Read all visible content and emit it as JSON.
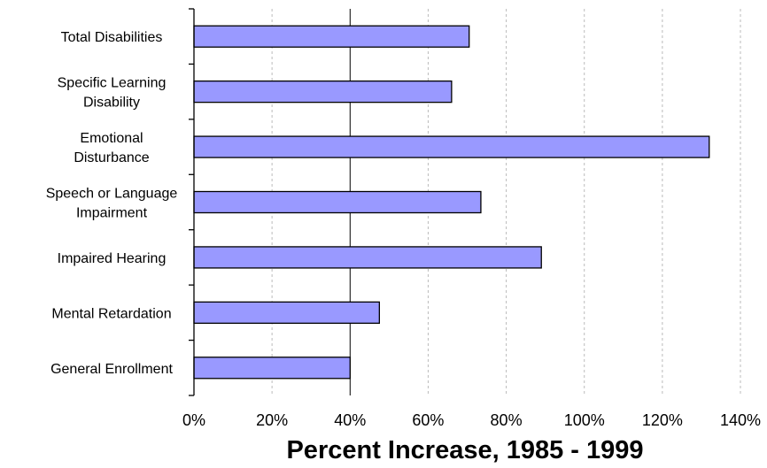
{
  "chart_data": {
    "type": "bar",
    "orientation": "horizontal",
    "categories": [
      [
        "Total Disabilities"
      ],
      [
        "Specific Learning",
        "Disability"
      ],
      [
        "Emotional",
        "Disturbance"
      ],
      [
        "Speech or Language",
        "Impairment"
      ],
      [
        "Impaired Hearing"
      ],
      [
        "Mental Retardation"
      ],
      [
        "General Enrollment"
      ]
    ],
    "values": [
      70.5,
      66,
      132,
      73.5,
      89,
      47.5,
      40
    ],
    "title": "",
    "xlabel": "Percent Increase, 1985 - 1999",
    "ylabel": "",
    "xlim": [
      0,
      140
    ],
    "x_ticks": [
      0,
      20,
      40,
      60,
      80,
      100,
      120,
      140
    ],
    "x_tick_labels": [
      "0%",
      "20%",
      "40%",
      "60%",
      "80%",
      "100%",
      "120%",
      "140%"
    ],
    "reference_line_at": 40,
    "grid": "vertical dashed",
    "legend": "none",
    "colors": {
      "bar_fill": "#9999FF",
      "bar_stroke": "#000000",
      "grid": "#BBBBBB",
      "axis": "#000000"
    }
  }
}
